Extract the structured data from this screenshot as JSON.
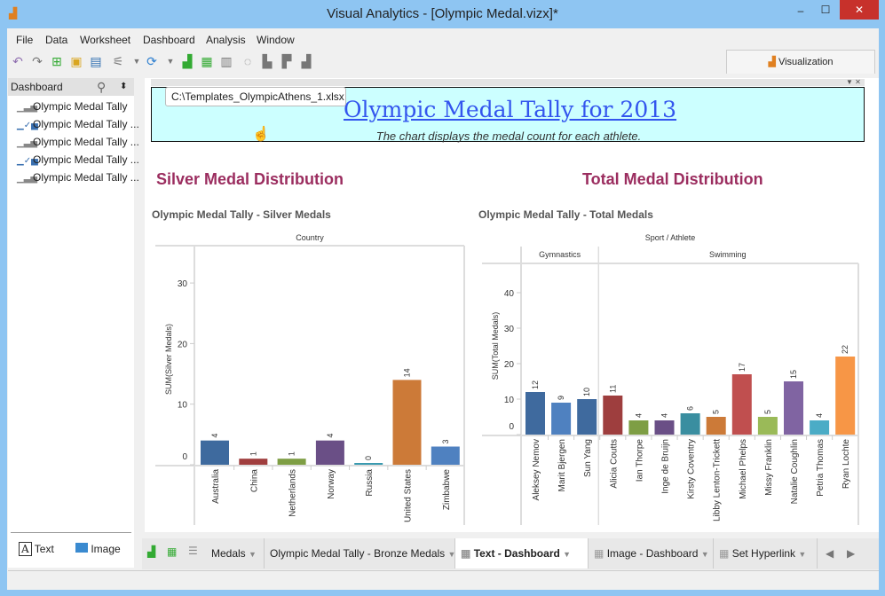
{
  "window": {
    "title": "Visual Analytics - [Olympic Medal.vizx]*",
    "min": "–",
    "max": "☐",
    "close": "✕"
  },
  "menu": [
    "File",
    "Data",
    "Worksheet",
    "Dashboard",
    "Analysis",
    "Window"
  ],
  "toolbar": {
    "visualization_tab": "Visualization"
  },
  "left_panel": {
    "header": "Dashboard",
    "sheets": [
      "Olympic Medal Tally",
      "Olympic Medal Tally ...",
      "Olympic Medal Tally ...",
      "Olympic Medal Tally ...",
      "Olympic Medal Tally ..."
    ],
    "objects": [
      {
        "label": "Text",
        "icon": "A"
      },
      {
        "label": "Image",
        "icon": "image-icon"
      }
    ]
  },
  "banner": {
    "title": "Olympic Medal Tally for 2013",
    "subtitle": "The chart displays the medal count for each athlete.",
    "tooltip": "C:\\Templates_OlympicAthens_1.xlsx",
    "bg": "#ccffff"
  },
  "sections": {
    "silver": "Silver Medal Distribution",
    "total": "Total Medal Distribution"
  },
  "chart_data": [
    {
      "type": "bar",
      "title": "Olympic Medal Tally - Silver Medals",
      "column_header": "Country",
      "ylabel": "SUM(Silver Medals)",
      "ylim": [
        0,
        35
      ],
      "yticks": [
        "0",
        "10",
        "20",
        "30"
      ],
      "categories": [
        "Australia",
        "China",
        "Netherlands",
        "Norway",
        "Russia",
        "United States",
        "Zimbabwe"
      ],
      "values": [
        4,
        1,
        1,
        4,
        0,
        14,
        3
      ],
      "colors": [
        "#3e6a9e",
        "#a03e3e",
        "#7e9e44",
        "#6a4f86",
        "#3a9ab0",
        "#cc7a38",
        "#4f81c0"
      ]
    },
    {
      "type": "bar",
      "title": "Olympic Medal Tally - Total Medals",
      "column_header": "Sport / Athlete",
      "ylabel": "SUM(Total Medals)",
      "ylim": [
        0,
        47
      ],
      "yticks": [
        "0",
        "10",
        "20",
        "30",
        "40"
      ],
      "groups": [
        {
          "name": "Gymnastics",
          "count": 3
        },
        {
          "name": "Swimming",
          "count": 10
        }
      ],
      "categories": [
        "Aleksey Nemov",
        "Marit Bjergen",
        "Sun Yang",
        "Alicia Coutts",
        "Ian Thorpe",
        "Inge de Bruijn",
        "Kirsty Coventry",
        "Libby Lenton-Trickett",
        "Michael Phelps",
        "Missy Franklin",
        "Natalie Coughlin",
        "Petria Thomas",
        "Ryan Lochte"
      ],
      "values": [
        12,
        9,
        10,
        11,
        4,
        4,
        6,
        5,
        17,
        5,
        15,
        4,
        22
      ],
      "colors": [
        "#3f6a9e",
        "#4f81c0",
        "#3f6a9e",
        "#9e3e3e",
        "#7e9e44",
        "#6a4f86",
        "#3a8ea0",
        "#cc7a38",
        "#c04f4f",
        "#9aba58",
        "#8064a2",
        "#4bacc6",
        "#f79646"
      ]
    }
  ],
  "tabs": [
    "Medals",
    "Olympic Medal Tally - Bronze Medals",
    "Text - Dashboard",
    "Image - Dashboard",
    "Set Hyperlink"
  ],
  "active_tab": "Text - Dashboard"
}
